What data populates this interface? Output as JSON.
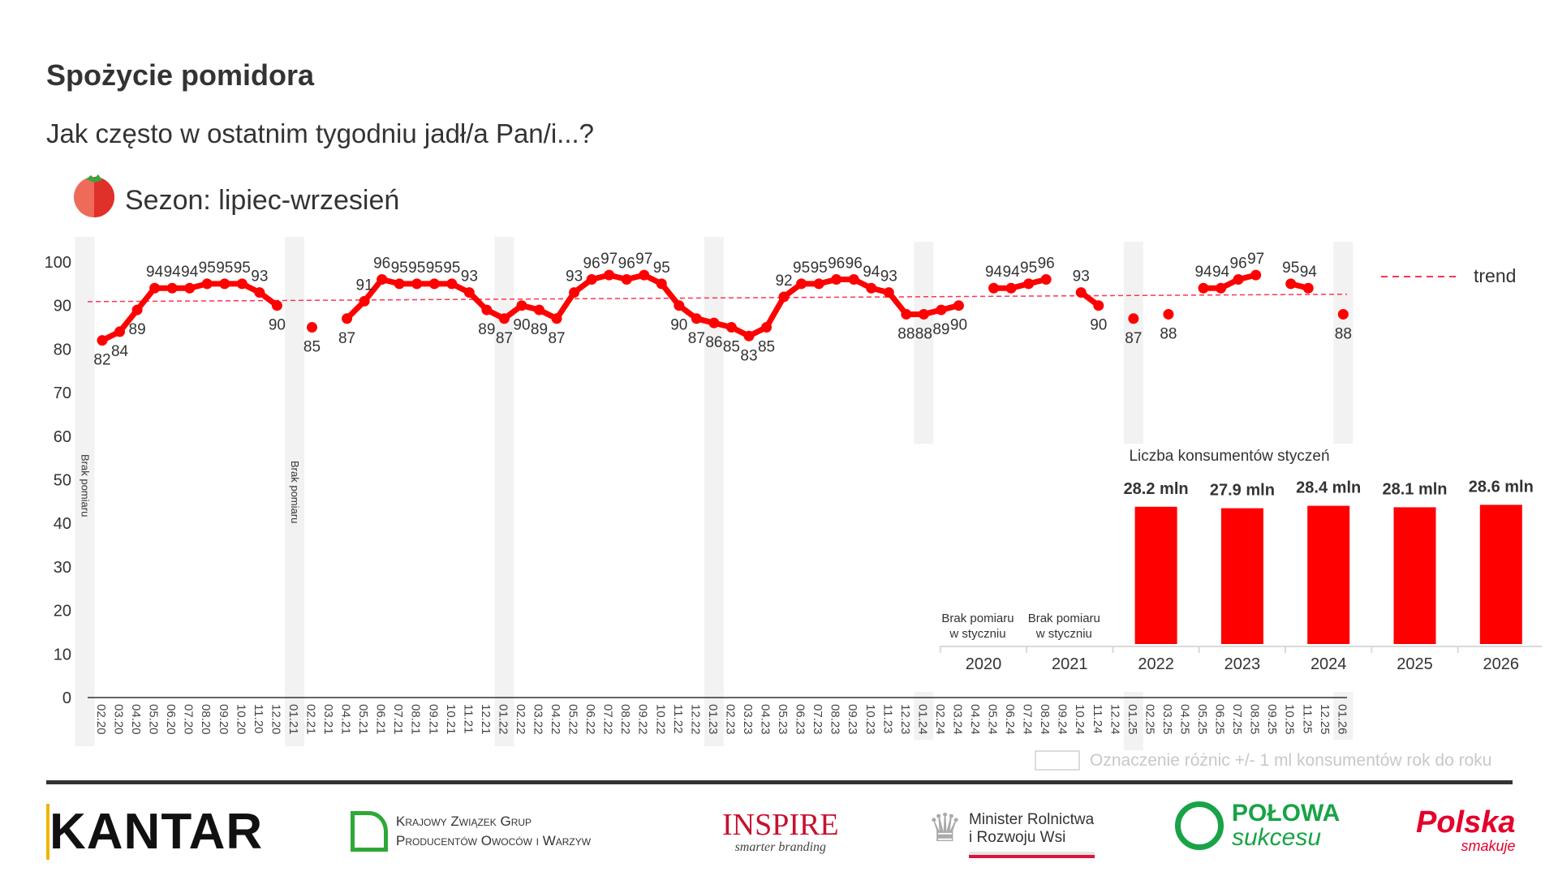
{
  "header": {
    "title": "Spożycie pomidora",
    "subtitle": "Jak często w ostatnim tygodniu jadł/a Pan/i...?",
    "season": "Sezon: lipiec-wrzesień",
    "season_icon": "tomato-icon"
  },
  "colors": {
    "series": "#ff0000",
    "trend": "#ff3355",
    "band": "#f2f2f2",
    "text": "#333333"
  },
  "chart_data": [
    {
      "type": "line",
      "title": "Jak często w ostatnim tygodniu jadł/a Pan/i...?",
      "ylim": [
        0,
        100
      ],
      "yticks": [
        "0",
        "10",
        "20",
        "30",
        "40",
        "50",
        "60",
        "70",
        "80",
        "90",
        "100"
      ],
      "x": [
        "02.20",
        "03.20",
        "04.20",
        "05.20",
        "06.20",
        "07.20",
        "08.20",
        "09.20",
        "10.20",
        "11.20",
        "12.20",
        "01.21",
        "02.21",
        "03.21",
        "04.21",
        "05.21",
        "06.21",
        "07.21",
        "08.21",
        "09.21",
        "10.21",
        "11.21",
        "12.21",
        "01.22",
        "02.22",
        "03.22",
        "04.22",
        "05.22",
        "06.22",
        "07.22",
        "08.22",
        "09.22",
        "10.22",
        "11.22",
        "12.22",
        "01.23",
        "02.23",
        "03.23",
        "04.23",
        "05.23",
        "06.23",
        "07.23",
        "08.23",
        "09.23",
        "10.23",
        "11.23",
        "12.23",
        "01.24",
        "02.24",
        "03.24",
        "04.24",
        "05.24",
        "06.24",
        "07.24",
        "08.24",
        "09.24",
        "10.24",
        "11.24",
        "12.24",
        "01.25",
        "02.25",
        "03.25",
        "04.25",
        "05.25",
        "06.25",
        "07.25",
        "08.25",
        "09.25",
        "10.25",
        "11.25",
        "12.25",
        "01.26"
      ],
      "values": [
        82,
        84,
        89,
        94,
        94,
        94,
        95,
        95,
        95,
        93,
        90,
        null,
        85,
        null,
        87,
        91,
        96,
        95,
        95,
        95,
        95,
        93,
        89,
        87,
        90,
        89,
        87,
        93,
        96,
        97,
        96,
        97,
        95,
        90,
        87,
        86,
        85,
        83,
        85,
        92,
        95,
        95,
        96,
        96,
        94,
        93,
        88,
        88,
        89,
        90,
        null,
        94,
        94,
        95,
        96,
        null,
        93,
        90,
        null,
        87,
        null,
        88,
        null,
        94,
        94,
        96,
        97,
        null,
        95,
        94,
        null,
        88
      ],
      "trend": {
        "label": "trend",
        "start": 90.9,
        "end": 92.6
      },
      "shaded_months": [
        "01.20",
        "01.21",
        "01.22",
        "01.23",
        "01.24",
        "01.25",
        "01.26"
      ],
      "no_data_label": "Brak pomiaru",
      "no_data_bands": [
        "01.20",
        "01.21"
      ]
    },
    {
      "type": "bar",
      "title": "Liczba konsumentów styczeń",
      "categories": [
        "2020",
        "2021",
        "2022",
        "2023",
        "2024",
        "2025",
        "2026"
      ],
      "values": [
        null,
        null,
        28.2,
        27.9,
        28.4,
        28.1,
        28.6
      ],
      "value_labels": [
        "",
        "",
        "28.2 mln",
        "27.9 mln",
        "28.4 mln",
        "28.1 mln",
        "28.6 mln"
      ],
      "missing_label_line1": "Brak pomiaru",
      "missing_label_line2": "w styczniu",
      "unit": "mln"
    }
  ],
  "legend_note": "Oznaczenie różnic +/- 1 ml konsumentów rok do roku",
  "footer": {
    "kantar": "KANTAR",
    "kzgp_line1": "Krajowy Związek Grup",
    "kzgp_line2": "Producentów Owoców i Warzyw",
    "inspire": "INSPIRE",
    "inspire_tag": "smarter branding",
    "minister_line1": "Minister Rolnictwa",
    "minister_line2": "i Rozwoju Wsi",
    "polowa_line1": "POŁOWA",
    "polowa_line2": "sukcesu",
    "polska_line1": "Polska",
    "polska_line2": "smakuje"
  }
}
